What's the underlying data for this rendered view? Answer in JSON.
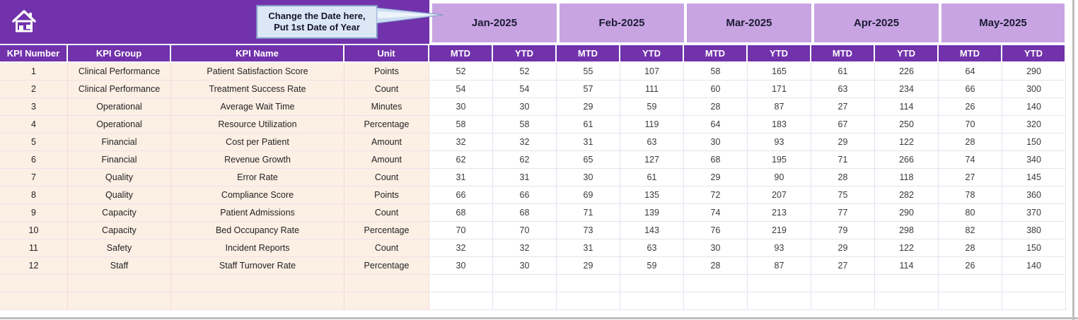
{
  "banner": {
    "home_icon": "home-icon"
  },
  "callout": {
    "line1": "Change the Date here,",
    "line2": "Put 1st Date of Year"
  },
  "table": {
    "column_headers": [
      "KPI Number",
      "KPI Group",
      "KPI Name",
      "Unit"
    ],
    "months": [
      "Jan-2025",
      "Feb-2025",
      "Mar-2025",
      "Apr-2025",
      "May-2025"
    ],
    "period_headers": [
      "MTD",
      "YTD"
    ],
    "rows": [
      {
        "kpi_number": "1",
        "kpi_group": "Clinical Performance",
        "kpi_name": "Patient Satisfaction Score",
        "unit": "Points",
        "values": [
          52,
          52,
          55,
          107,
          58,
          165,
          61,
          226,
          64,
          290
        ]
      },
      {
        "kpi_number": "2",
        "kpi_group": "Clinical Performance",
        "kpi_name": "Treatment Success Rate",
        "unit": "Count",
        "values": [
          54,
          54,
          57,
          111,
          60,
          171,
          63,
          234,
          66,
          300
        ]
      },
      {
        "kpi_number": "3",
        "kpi_group": "Operational",
        "kpi_name": "Average Wait Time",
        "unit": "Minutes",
        "values": [
          30,
          30,
          29,
          59,
          28,
          87,
          27,
          114,
          26,
          140
        ]
      },
      {
        "kpi_number": "4",
        "kpi_group": "Operational",
        "kpi_name": "Resource Utilization",
        "unit": "Percentage",
        "values": [
          58,
          58,
          61,
          119,
          64,
          183,
          67,
          250,
          70,
          320
        ]
      },
      {
        "kpi_number": "5",
        "kpi_group": "Financial",
        "kpi_name": "Cost per Patient",
        "unit": "Amount",
        "values": [
          32,
          32,
          31,
          63,
          30,
          93,
          29,
          122,
          28,
          150
        ]
      },
      {
        "kpi_number": "6",
        "kpi_group": "Financial",
        "kpi_name": "Revenue Growth",
        "unit": "Amount",
        "values": [
          62,
          62,
          65,
          127,
          68,
          195,
          71,
          266,
          74,
          340
        ]
      },
      {
        "kpi_number": "7",
        "kpi_group": "Quality",
        "kpi_name": "Error Rate",
        "unit": "Count",
        "values": [
          31,
          31,
          30,
          61,
          29,
          90,
          28,
          118,
          27,
          145
        ]
      },
      {
        "kpi_number": "8",
        "kpi_group": "Quality",
        "kpi_name": "Compliance Score",
        "unit": "Points",
        "values": [
          66,
          66,
          69,
          135,
          72,
          207,
          75,
          282,
          78,
          360
        ]
      },
      {
        "kpi_number": "9",
        "kpi_group": "Capacity",
        "kpi_name": "Patient Admissions",
        "unit": "Count",
        "values": [
          68,
          68,
          71,
          139,
          74,
          213,
          77,
          290,
          80,
          370
        ]
      },
      {
        "kpi_number": "10",
        "kpi_group": "Capacity",
        "kpi_name": "Bed Occupancy Rate",
        "unit": "Percentage",
        "values": [
          70,
          70,
          73,
          143,
          76,
          219,
          79,
          298,
          82,
          380
        ]
      },
      {
        "kpi_number": "11",
        "kpi_group": "Safety",
        "kpi_name": "Incident Reports",
        "unit": "Count",
        "values": [
          32,
          32,
          31,
          63,
          30,
          93,
          29,
          122,
          28,
          150
        ]
      },
      {
        "kpi_number": "12",
        "kpi_group": "Staff",
        "kpi_name": "Staff Turnover Rate",
        "unit": "Percentage",
        "values": [
          30,
          30,
          29,
          59,
          28,
          87,
          27,
          114,
          26,
          140
        ]
      }
    ],
    "empty_row_count": 2
  },
  "colors": {
    "banner_purple": "#7132ab",
    "header_purple": "#7132ab",
    "month_lavender": "#c8a4e2",
    "row_peach": "#fcefe4",
    "callout_fill": "#dce7f5",
    "callout_border": "#8095c6",
    "month_text": "#1d1b35",
    "grid_line_data": "#e7e1ee",
    "grid_line_peach": "#f1dada",
    "window_edge_gray": "#bdbdbd"
  }
}
